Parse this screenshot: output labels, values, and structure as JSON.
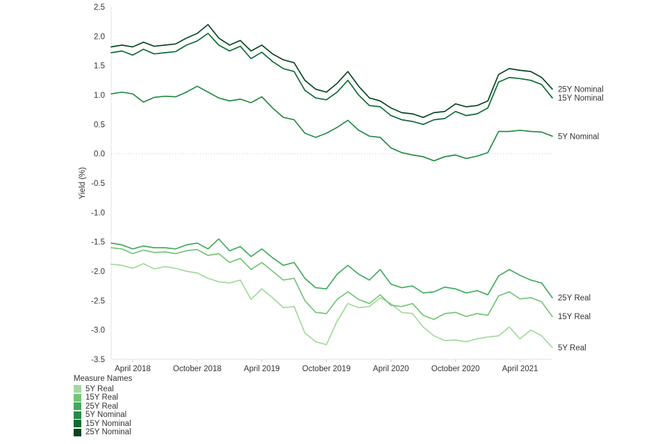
{
  "chart_data": {
    "type": "line",
    "title": "",
    "xlabel": "",
    "ylabel": "Yield (%)",
    "ylim": [
      -3.5,
      2.5
    ],
    "y_ticks": [
      2.5,
      2.0,
      1.5,
      1.0,
      0.5,
      0.0,
      -0.5,
      -1.0,
      -1.5,
      -2.0,
      -2.5,
      -3.0,
      -3.5
    ],
    "x_tick_labels": [
      "April 2018",
      "October 2018",
      "April 2019",
      "October 2019",
      "April 2020",
      "October 2020",
      "April 2021"
    ],
    "x_tick_indices": [
      2,
      8,
      14,
      20,
      26,
      32,
      38
    ],
    "grid": "zero-line-only",
    "legend": {
      "title": "Measure Names",
      "position": "bottom-left",
      "entries": [
        "5Y Real",
        "15Y Real",
        "25Y Real",
        "5Y Nominal",
        "15Y Nominal",
        "25Y Nominal"
      ]
    },
    "x_months": [
      "2018-02",
      "2018-03",
      "2018-04",
      "2018-05",
      "2018-06",
      "2018-07",
      "2018-08",
      "2018-09",
      "2018-10",
      "2018-11",
      "2018-12",
      "2019-01",
      "2019-02",
      "2019-03",
      "2019-04",
      "2019-05",
      "2019-06",
      "2019-07",
      "2019-08",
      "2019-09",
      "2019-10",
      "2019-11",
      "2019-12",
      "2020-01",
      "2020-02",
      "2020-03",
      "2020-04",
      "2020-05",
      "2020-06",
      "2020-07",
      "2020-08",
      "2020-09",
      "2020-10",
      "2020-11",
      "2020-12",
      "2021-01",
      "2021-02",
      "2021-03",
      "2021-04",
      "2021-05",
      "2021-06",
      "2021-07"
    ],
    "series": [
      {
        "name": "5Y Real",
        "color": "#a1d99b",
        "values": [
          -1.88,
          -1.9,
          -1.95,
          -1.87,
          -1.96,
          -1.92,
          -1.95,
          -2.0,
          -2.03,
          -2.12,
          -2.18,
          -2.2,
          -2.15,
          -2.48,
          -2.3,
          -2.45,
          -2.62,
          -2.6,
          -3.05,
          -3.2,
          -3.25,
          -2.85,
          -2.55,
          -2.62,
          -2.6,
          -2.45,
          -2.55,
          -2.7,
          -2.72,
          -2.95,
          -3.1,
          -3.18,
          -3.17,
          -3.2,
          -3.15,
          -3.12,
          -3.1,
          -2.95,
          -3.15,
          -3.0,
          -3.1,
          -3.3
        ]
      },
      {
        "name": "15Y Real",
        "color": "#74c476",
        "values": [
          -1.6,
          -1.62,
          -1.7,
          -1.64,
          -1.68,
          -1.67,
          -1.7,
          -1.65,
          -1.63,
          -1.73,
          -1.7,
          -1.85,
          -1.78,
          -1.97,
          -1.85,
          -2.0,
          -2.15,
          -2.12,
          -2.5,
          -2.7,
          -2.72,
          -2.48,
          -2.35,
          -2.48,
          -2.55,
          -2.4,
          -2.58,
          -2.6,
          -2.55,
          -2.75,
          -2.82,
          -2.72,
          -2.7,
          -2.77,
          -2.72,
          -2.75,
          -2.42,
          -2.35,
          -2.47,
          -2.45,
          -2.52,
          -2.77
        ]
      },
      {
        "name": "25Y Real",
        "color": "#41ab5d",
        "values": [
          -1.52,
          -1.55,
          -1.62,
          -1.57,
          -1.6,
          -1.6,
          -1.62,
          -1.55,
          -1.52,
          -1.62,
          -1.45,
          -1.65,
          -1.58,
          -1.75,
          -1.62,
          -1.77,
          -1.9,
          -1.85,
          -2.12,
          -2.28,
          -2.3,
          -2.05,
          -1.9,
          -2.05,
          -2.15,
          -1.97,
          -2.22,
          -2.28,
          -2.25,
          -2.37,
          -2.35,
          -2.27,
          -2.3,
          -2.37,
          -2.33,
          -2.4,
          -2.08,
          -1.97,
          -2.07,
          -2.15,
          -2.2,
          -2.45
        ]
      },
      {
        "name": "5Y Nominal",
        "color": "#238b45",
        "values": [
          1.02,
          1.05,
          1.02,
          0.88,
          0.96,
          0.98,
          0.97,
          1.05,
          1.15,
          1.05,
          0.95,
          0.9,
          0.93,
          0.87,
          0.97,
          0.78,
          0.62,
          0.58,
          0.35,
          0.28,
          0.35,
          0.45,
          0.57,
          0.4,
          0.3,
          0.28,
          0.1,
          0.02,
          -0.02,
          -0.05,
          -0.12,
          -0.05,
          -0.02,
          -0.08,
          -0.04,
          0.02,
          0.38,
          0.38,
          0.4,
          0.38,
          0.37,
          0.3
        ]
      },
      {
        "name": "15Y Nominal",
        "color": "#0b6b33",
        "values": [
          1.72,
          1.75,
          1.68,
          1.78,
          1.7,
          1.72,
          1.74,
          1.85,
          1.92,
          2.05,
          1.85,
          1.75,
          1.83,
          1.62,
          1.73,
          1.57,
          1.45,
          1.4,
          1.08,
          0.95,
          0.92,
          1.05,
          1.25,
          1.0,
          0.82,
          0.8,
          0.65,
          0.58,
          0.55,
          0.5,
          0.58,
          0.6,
          0.72,
          0.65,
          0.68,
          0.78,
          1.22,
          1.3,
          1.28,
          1.25,
          1.18,
          0.95
        ]
      },
      {
        "name": "25Y Nominal",
        "color": "#07451f",
        "values": [
          1.82,
          1.85,
          1.82,
          1.9,
          1.83,
          1.85,
          1.87,
          1.97,
          2.05,
          2.2,
          1.97,
          1.85,
          1.93,
          1.75,
          1.85,
          1.7,
          1.6,
          1.55,
          1.25,
          1.1,
          1.05,
          1.2,
          1.4,
          1.15,
          0.95,
          0.9,
          0.78,
          0.7,
          0.68,
          0.62,
          0.7,
          0.72,
          0.85,
          0.8,
          0.82,
          0.9,
          1.35,
          1.45,
          1.42,
          1.4,
          1.3,
          1.1
        ]
      }
    ],
    "line_end_labels": [
      "25Y Nominal",
      "15Y Nominal",
      "5Y Nominal",
      "25Y Real",
      "15Y Real",
      "5Y Real"
    ],
    "text_color": "#333333",
    "axis_line_color": "#e1e1e1"
  }
}
